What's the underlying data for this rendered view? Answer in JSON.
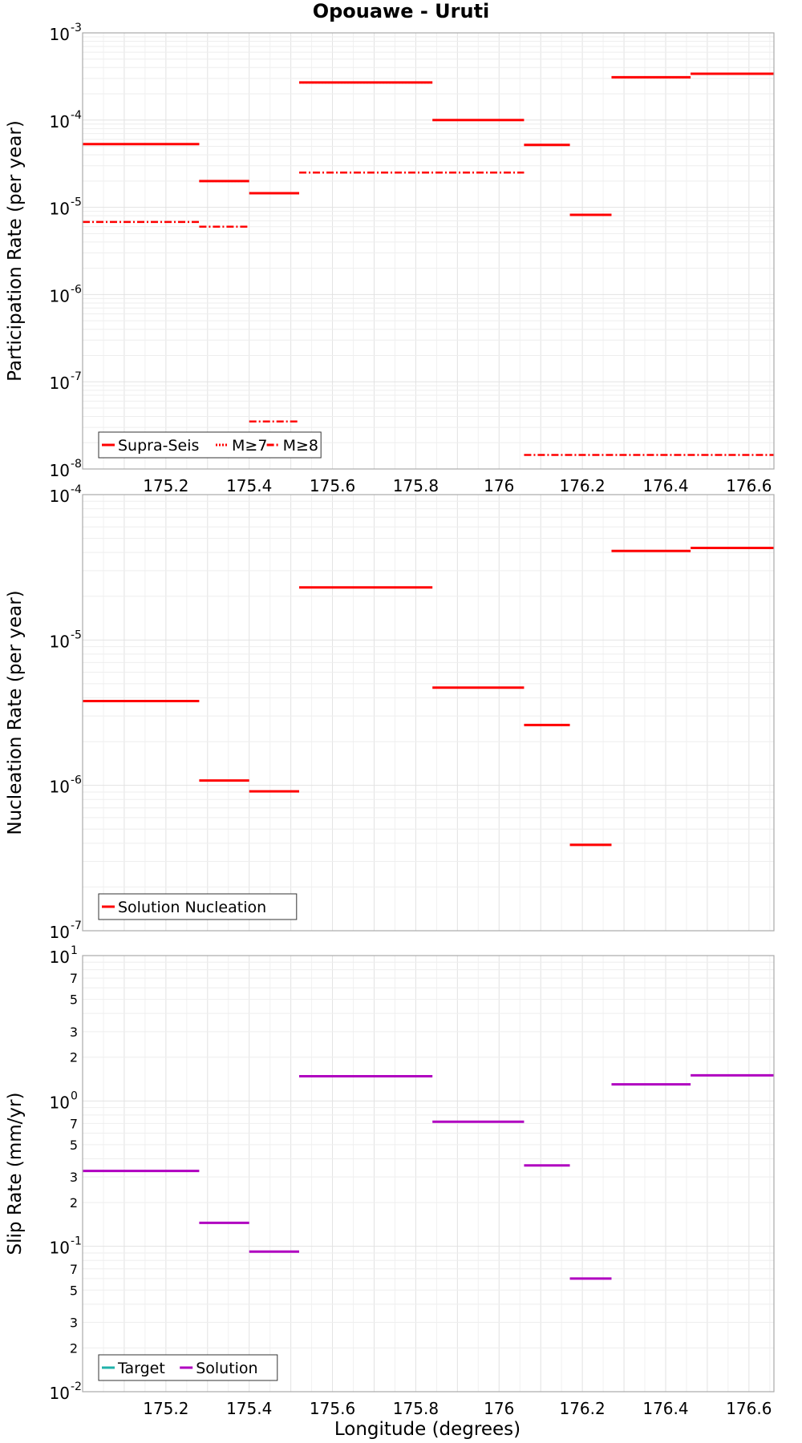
{
  "chart_data": [
    {
      "type": "line",
      "title": "Opouawe - Uruti",
      "xlabel": "",
      "ylabel": "Participation Rate (per year)",
      "yscale": "log",
      "ylim": [
        1e-08,
        0.001
      ],
      "xlim": [
        175.0,
        176.66
      ],
      "y_tick_labels": [
        {
          "base": "10",
          "exp": "-8"
        },
        {
          "base": "10",
          "exp": "-7"
        },
        {
          "base": "10",
          "exp": "-6"
        },
        {
          "base": "10",
          "exp": "-5"
        },
        {
          "base": "10",
          "exp": "-4"
        },
        {
          "base": "10",
          "exp": "-3"
        }
      ],
      "x_tick_labels": [
        "175.2",
        "175.4",
        "175.6",
        "175.8",
        "176",
        "176.2",
        "176.4",
        "176.6"
      ],
      "grid": true,
      "legend_position": "bottom-left",
      "series": [
        {
          "name": "Supra-Seis",
          "color": "#ff0000",
          "style": "solid",
          "segments": [
            {
              "x": [
                175.0,
                175.28
              ],
              "y": 5.3e-05
            },
            {
              "x": [
                175.28,
                175.4
              ],
              "y": 2e-05
            },
            {
              "x": [
                175.4,
                175.52
              ],
              "y": 1.45e-05
            },
            {
              "x": [
                175.52,
                175.84
              ],
              "y": 0.00027
            },
            {
              "x": [
                175.84,
                176.06
              ],
              "y": 0.0001
            },
            {
              "x": [
                176.06,
                176.17
              ],
              "y": 5.2e-05
            },
            {
              "x": [
                176.17,
                176.27
              ],
              "y": 8.2e-06
            },
            {
              "x": [
                176.27,
                176.46
              ],
              "y": 0.00031
            },
            {
              "x": [
                176.46,
                176.66
              ],
              "y": 0.00034
            }
          ]
        },
        {
          "name": "M≥7",
          "color": "#ff0000",
          "style": "dotted",
          "segments": [
            {
              "x": [
                175.0,
                175.28
              ],
              "y": 5.3e-05
            },
            {
              "x": [
                175.28,
                175.4
              ],
              "y": 2e-05
            },
            {
              "x": [
                175.52,
                175.84
              ],
              "y": 0.00027
            },
            {
              "x": [
                176.06,
                176.17
              ],
              "y": 5.2e-05
            },
            {
              "x": [
                176.27,
                176.46
              ],
              "y": 0.00031
            },
            {
              "x": [
                176.46,
                176.66
              ],
              "y": 0.00034
            }
          ]
        },
        {
          "name": "M≥8",
          "color": "#ff0000",
          "style": "dashdot",
          "segments": [
            {
              "x": [
                175.0,
                175.28
              ],
              "y": 6.8e-06
            },
            {
              "x": [
                175.28,
                175.4
              ],
              "y": 6e-06
            },
            {
              "x": [
                175.4,
                175.52
              ],
              "y": 3.5e-08
            },
            {
              "x": [
                175.52,
                176.06
              ],
              "y": 2.5e-05
            },
            {
              "x": [
                176.06,
                176.66
              ],
              "y": 1.45e-08
            }
          ]
        }
      ]
    },
    {
      "type": "line",
      "title": "",
      "xlabel": "",
      "ylabel": "Nucleation Rate (per year)",
      "yscale": "log",
      "ylim": [
        1e-07,
        0.0001
      ],
      "xlim": [
        175.0,
        176.66
      ],
      "y_tick_labels": [
        {
          "base": "10",
          "exp": "-7"
        },
        {
          "base": "10",
          "exp": "-6"
        },
        {
          "base": "10",
          "exp": "-5"
        },
        {
          "base": "10",
          "exp": "-4"
        }
      ],
      "grid": true,
      "legend_position": "bottom-left",
      "series": [
        {
          "name": "Solution Nucleation",
          "color": "#ff0000",
          "style": "solid",
          "segments": [
            {
              "x": [
                175.0,
                175.28
              ],
              "y": 3.8e-06
            },
            {
              "x": [
                175.28,
                175.4
              ],
              "y": 1.08e-06
            },
            {
              "x": [
                175.4,
                175.52
              ],
              "y": 9.1e-07
            },
            {
              "x": [
                175.52,
                175.84
              ],
              "y": 2.3e-05
            },
            {
              "x": [
                175.84,
                176.06
              ],
              "y": 4.7e-06
            },
            {
              "x": [
                176.06,
                176.17
              ],
              "y": 2.6e-06
            },
            {
              "x": [
                176.17,
                176.27
              ],
              "y": 3.9e-07
            },
            {
              "x": [
                176.27,
                176.46
              ],
              "y": 4.1e-05
            },
            {
              "x": [
                176.46,
                176.66
              ],
              "y": 4.3e-05
            }
          ]
        }
      ]
    },
    {
      "type": "line",
      "title": "",
      "xlabel": "Longitude (degrees)",
      "ylabel": "Slip Rate (mm/yr)",
      "yscale": "log",
      "ylim": [
        0.01,
        10
      ],
      "xlim": [
        175.0,
        176.66
      ],
      "y_tick_labels": [
        {
          "base": "10",
          "exp": "-2"
        },
        {
          "base": "10",
          "exp": "-1"
        },
        {
          "base": "10",
          "exp": "0"
        },
        {
          "base": "10",
          "exp": "1"
        }
      ],
      "y_minor_tick_labels": [
        {
          "v": 0.02,
          "label": "2"
        },
        {
          "v": 0.03,
          "label": "3"
        },
        {
          "v": 0.05,
          "label": "5"
        },
        {
          "v": 0.07,
          "label": "7"
        },
        {
          "v": 0.2,
          "label": "2"
        },
        {
          "v": 0.3,
          "label": "3"
        },
        {
          "v": 0.5,
          "label": "5"
        },
        {
          "v": 0.7,
          "label": "7"
        },
        {
          "v": 2,
          "label": "2"
        },
        {
          "v": 3,
          "label": "3"
        },
        {
          "v": 5,
          "label": "5"
        },
        {
          "v": 7,
          "label": "7"
        }
      ],
      "x_tick_labels": [
        "175.2",
        "175.4",
        "175.6",
        "175.8",
        "176",
        "176.2",
        "176.4",
        "176.6"
      ],
      "grid": true,
      "legend_position": "bottom-left",
      "series": [
        {
          "name": "Target",
          "color": "#20b2aa",
          "style": "solid",
          "segments": []
        },
        {
          "name": "Solution",
          "color": "#b000c0",
          "style": "solid",
          "segments": [
            {
              "x": [
                175.0,
                175.28
              ],
              "y": 0.33
            },
            {
              "x": [
                175.28,
                175.4
              ],
              "y": 0.145
            },
            {
              "x": [
                175.4,
                175.52
              ],
              "y": 0.092
            },
            {
              "x": [
                175.52,
                175.84
              ],
              "y": 1.48
            },
            {
              "x": [
                175.84,
                176.06
              ],
              "y": 0.72
            },
            {
              "x": [
                176.06,
                176.17
              ],
              "y": 0.36
            },
            {
              "x": [
                176.17,
                176.27
              ],
              "y": 0.06
            },
            {
              "x": [
                176.27,
                176.46
              ],
              "y": 1.3
            },
            {
              "x": [
                176.46,
                176.66
              ],
              "y": 1.5
            }
          ]
        }
      ]
    }
  ]
}
